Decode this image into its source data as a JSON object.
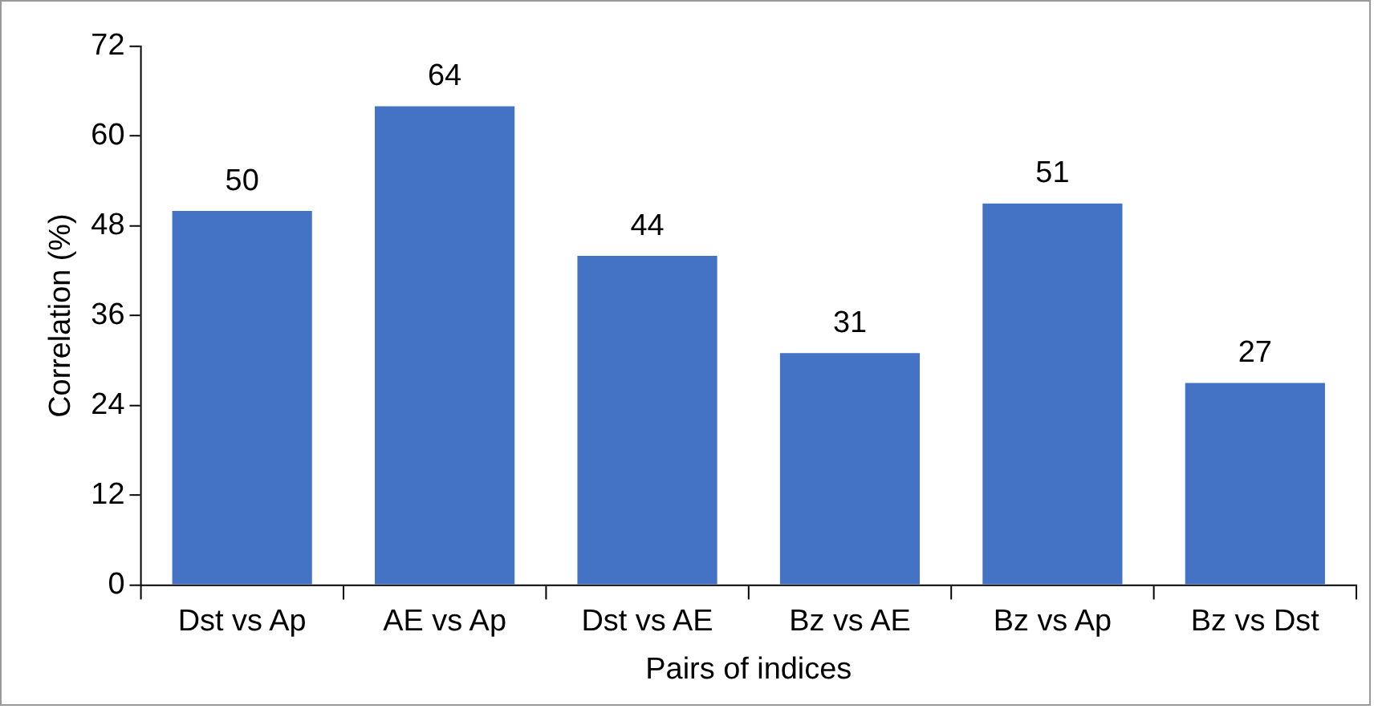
{
  "chart_data": {
    "type": "bar",
    "xlabel": "Pairs of indices",
    "ylabel": "Correlation (%)",
    "categories": [
      "Dst vs Ap",
      "AE vs Ap",
      "Dst vs AE",
      "Bz vs AE",
      "Bz vs Ap",
      "Bz vs Dst"
    ],
    "values": [
      50,
      64,
      44,
      31,
      51,
      27
    ],
    "color": "#4472c4",
    "ylim": [
      0,
      72
    ],
    "yticks": [
      0,
      12,
      24,
      36,
      48,
      60,
      72
    ],
    "grid": false,
    "legend": false,
    "data_labels": true
  }
}
